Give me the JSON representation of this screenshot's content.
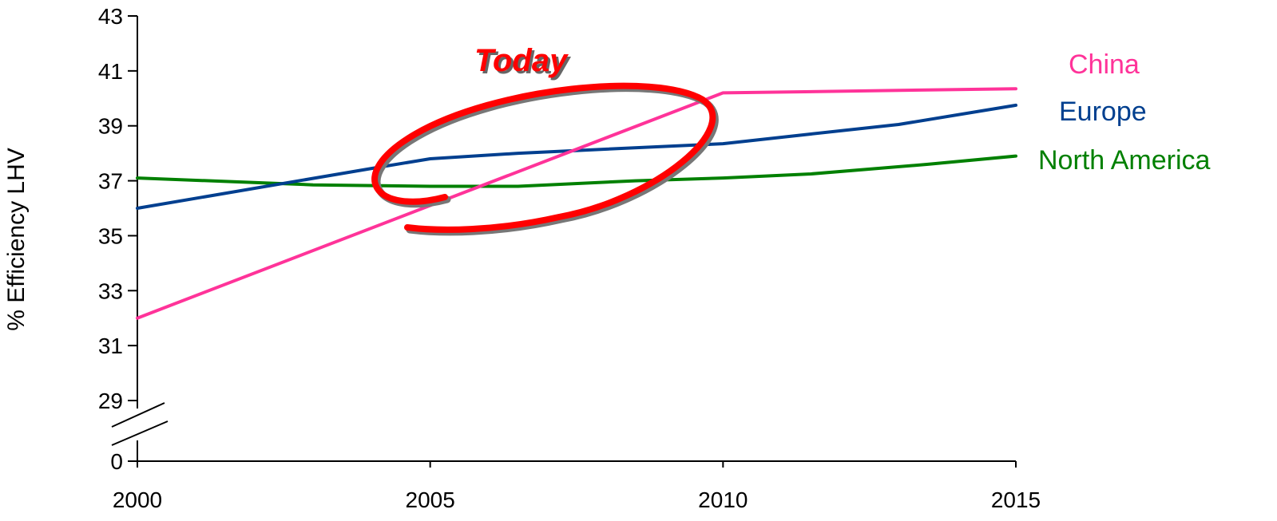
{
  "chart_data": {
    "type": "line",
    "title": "",
    "xlabel": "",
    "ylabel": "% Efficiency LHV",
    "x": [
      2000,
      2005,
      2010,
      2015
    ],
    "x_tick_labels": [
      "2000",
      "2005",
      "2010",
      "2015"
    ],
    "y_tick_labels": [
      "0",
      "29",
      "31",
      "33",
      "35",
      "37",
      "39",
      "41",
      "43"
    ],
    "ylim": [
      29,
      43
    ],
    "y_axis_break": true,
    "grid": false,
    "series": [
      {
        "name": "China",
        "color": "#ff3399",
        "points": [
          [
            2000,
            32.0
          ],
          [
            2010,
            40.2
          ],
          [
            2015,
            40.35
          ]
        ]
      },
      {
        "name": "Europe",
        "color": "#003f8f",
        "points": [
          [
            2000,
            36.0
          ],
          [
            2004,
            37.45
          ],
          [
            2005,
            37.8
          ],
          [
            2006.5,
            38.0
          ],
          [
            2010,
            38.35
          ],
          [
            2011.5,
            38.7
          ],
          [
            2013,
            39.05
          ],
          [
            2015,
            39.75
          ]
        ]
      },
      {
        "name": "North America",
        "color": "#008000",
        "points": [
          [
            2000,
            37.1
          ],
          [
            2003,
            36.85
          ],
          [
            2005,
            36.8
          ],
          [
            2006.5,
            36.8
          ],
          [
            2008.5,
            37.0
          ],
          [
            2010,
            37.1
          ],
          [
            2011.5,
            37.25
          ],
          [
            2013.5,
            37.6
          ],
          [
            2015,
            37.9
          ]
        ]
      }
    ],
    "annotations": [
      {
        "text": "Today",
        "color": "#ff0000"
      }
    ]
  }
}
